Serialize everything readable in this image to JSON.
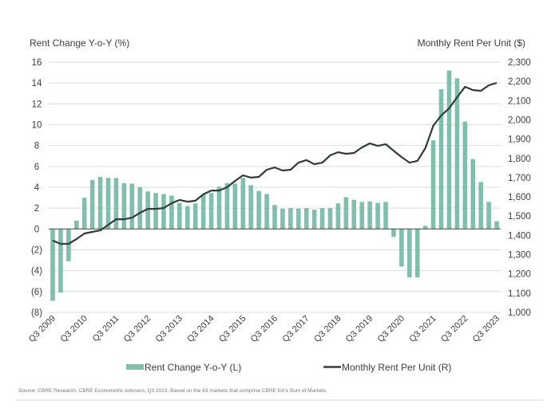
{
  "chart_data": {
    "type": "bar+line",
    "title": "",
    "source": "Source: CBRE Research, CBRE Econometric Advisors, Q3 2023. Based on the 63 markets that comprise CBRE EA's Sum of Markets.",
    "left_axis": {
      "label": "Rent Change Y-o-Y (%)",
      "range": [
        -8,
        16
      ],
      "ticks": [
        16,
        14,
        12,
        10,
        8,
        6,
        4,
        2,
        0,
        -2,
        -4,
        -6,
        -8
      ],
      "tick_labels": [
        "16",
        "14",
        "12",
        "10",
        "8",
        "6",
        "4",
        "2",
        "0",
        "(2)",
        "(4)",
        "(6)",
        "(8)"
      ]
    },
    "right_axis": {
      "label": "Monthly Rent Per Unit ($)",
      "range": [
        1000,
        2300
      ],
      "ticks": [
        2300,
        2200,
        2100,
        2000,
        1900,
        1800,
        1700,
        1600,
        1500,
        1400,
        1300,
        1200,
        1100,
        1000
      ],
      "tick_labels": [
        "2,300",
        "2,200",
        "2,100",
        "2,000",
        "1,900",
        "1,800",
        "1,700",
        "1,600",
        "1,500",
        "1,400",
        "1,300",
        "1,200",
        "1,100",
        "1,000"
      ]
    },
    "x_tick_labels": [
      "Q3 2009",
      "Q3 2010",
      "Q3 2011",
      "Q3 2012",
      "Q3 2013",
      "Q3 2014",
      "Q3 2015",
      "Q3 2016",
      "Q3 2017",
      "Q3 2018",
      "Q3 2019",
      "Q3 2020",
      "Q3 2021",
      "Q3 2022",
      "Q3 2023"
    ],
    "grid": true,
    "legend_position": "bottom",
    "colors": {
      "bar": "#7fbfab",
      "line": "#333b3a",
      "grid": "#d9dedd",
      "zero_line": "#555555"
    },
    "categories": [
      "Q3 2009",
      "Q4 2009",
      "Q1 2010",
      "Q2 2010",
      "Q3 2010",
      "Q4 2010",
      "Q1 2011",
      "Q2 2011",
      "Q3 2011",
      "Q4 2011",
      "Q1 2012",
      "Q2 2012",
      "Q3 2012",
      "Q4 2012",
      "Q1 2013",
      "Q2 2013",
      "Q3 2013",
      "Q4 2013",
      "Q1 2014",
      "Q2 2014",
      "Q3 2014",
      "Q4 2014",
      "Q1 2015",
      "Q2 2015",
      "Q3 2015",
      "Q4 2015",
      "Q1 2016",
      "Q2 2016",
      "Q3 2016",
      "Q4 2016",
      "Q1 2017",
      "Q2 2017",
      "Q3 2017",
      "Q4 2017",
      "Q1 2018",
      "Q2 2018",
      "Q3 2018",
      "Q4 2018",
      "Q1 2019",
      "Q2 2019",
      "Q3 2019",
      "Q4 2019",
      "Q1 2020",
      "Q2 2020",
      "Q3 2020",
      "Q4 2020",
      "Q1 2021",
      "Q2 2021",
      "Q3 2021",
      "Q4 2021",
      "Q1 2022",
      "Q2 2022",
      "Q3 2022",
      "Q4 2022",
      "Q1 2023",
      "Q2 2023",
      "Q3 2023"
    ],
    "series": [
      {
        "name": "Rent Change Y-o-Y (L)",
        "type": "bar",
        "axis": "left",
        "values": [
          -6.9,
          -6.1,
          -3.1,
          0.8,
          3.0,
          4.7,
          5.0,
          4.9,
          4.9,
          4.4,
          4.35,
          4.0,
          3.6,
          3.45,
          3.35,
          3.2,
          2.5,
          2.2,
          2.45,
          3.3,
          3.45,
          4.05,
          4.4,
          4.35,
          4.9,
          4.2,
          3.65,
          3.35,
          2.3,
          1.95,
          2.0,
          1.95,
          2.0,
          1.85,
          2.0,
          2.0,
          2.45,
          3.05,
          2.8,
          2.6,
          2.65,
          2.5,
          2.6,
          -0.75,
          -3.6,
          -4.65,
          -4.65,
          0.3,
          8.5,
          13.4,
          15.2,
          14.45,
          10.3,
          6.7,
          4.5,
          2.6,
          0.75
        ]
      },
      {
        "name": "Monthly Rent Per Unit (R)",
        "type": "line",
        "axis": "right",
        "values": [
          1373,
          1356,
          1356,
          1381,
          1410,
          1418,
          1426,
          1455,
          1484,
          1484,
          1492,
          1517,
          1538,
          1538,
          1542,
          1567,
          1584,
          1575,
          1580,
          1613,
          1633,
          1633,
          1650,
          1683,
          1712,
          1700,
          1704,
          1741,
          1753,
          1737,
          1741,
          1778,
          1791,
          1770,
          1778,
          1816,
          1832,
          1824,
          1828,
          1857,
          1878,
          1865,
          1874,
          1840,
          1807,
          1778,
          1787,
          1853,
          1970,
          2023,
          2060,
          2118,
          2172,
          2155,
          2151,
          2180,
          2192
        ]
      }
    ]
  }
}
